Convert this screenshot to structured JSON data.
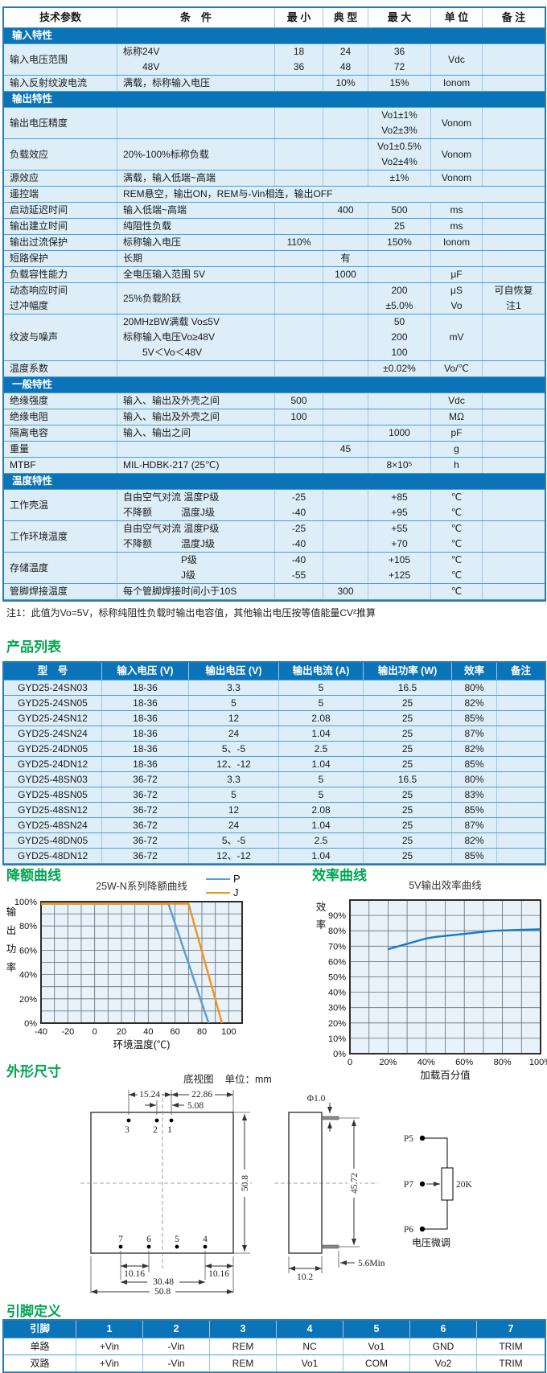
{
  "colors": {
    "header_blue": "#0b73b7",
    "row_light_blue": "#ddeef8",
    "border_blue": "#4e9dd0",
    "heading_green": "#00a551",
    "series_p_blue": "#5b9bd5",
    "series_j_orange": "#f0921e",
    "efficiency_line_blue": "#1879c8"
  },
  "headings": {
    "derating": "降额曲线",
    "efficiency": "效率曲线",
    "outline": "外形尺寸"
  },
  "spec_table": {
    "headers": [
      "技术参数",
      "条　件",
      "最 小",
      "典 型",
      "最 大",
      "单 位",
      "备 注"
    ],
    "rows": [
      {
        "section": "输入特性"
      },
      {
        "lines": 2,
        "param": [
          "输入电压范围"
        ],
        "cond": [
          "标称24V",
          "　　48V"
        ],
        "min": [
          "18",
          "36"
        ],
        "typ": [
          "24",
          "48"
        ],
        "max": [
          "36",
          "72"
        ],
        "unit": [
          "Vdc"
        ],
        "note": []
      },
      {
        "lines": 1,
        "param": [
          "输入反射纹波电流"
        ],
        "cond": [
          "满载，标称输入电压"
        ],
        "min": [],
        "typ": [
          "10%"
        ],
        "max": [
          "15%"
        ],
        "unit": [
          "Ionom"
        ],
        "note": []
      },
      {
        "section": "输出特性"
      },
      {
        "lines": 2,
        "param": [
          "输出电压精度"
        ],
        "cond": [],
        "min": [],
        "typ": [],
        "max": [
          "Vo1±1%",
          "Vo2±3%"
        ],
        "unit": [
          "Vonom"
        ],
        "note": []
      },
      {
        "lines": 2,
        "param": [
          "负载效应"
        ],
        "cond": [
          "20%-100%标称负载"
        ],
        "min": [],
        "typ": [],
        "max": [
          "Vo1±0.5%",
          "Vo2±4%"
        ],
        "unit": [
          "Vonom"
        ],
        "note": []
      },
      {
        "lines": 1,
        "param": [
          "源效应"
        ],
        "cond": [
          "满载，输入低端~高端"
        ],
        "min": [],
        "typ": [],
        "max": [
          "±1%"
        ],
        "unit": [
          "Vonom"
        ],
        "note": []
      },
      {
        "lines": 1,
        "param": [
          "遥控端"
        ],
        "cond_merged": "REM悬空，输出ON，REM与-Vin相连，输出OFF"
      },
      {
        "lines": 1,
        "param": [
          "启动延迟时间"
        ],
        "cond": [
          "输入低端~高端"
        ],
        "min": [],
        "typ": [
          "400"
        ],
        "max": [
          "500"
        ],
        "unit": [
          "ms"
        ],
        "note": []
      },
      {
        "lines": 1,
        "param": [
          "输出建立时间"
        ],
        "cond": [
          "纯阻性负载"
        ],
        "min": [],
        "typ": [],
        "max": [
          "25"
        ],
        "unit": [
          "ms"
        ],
        "note": []
      },
      {
        "lines": 1,
        "param": [
          "输出过流保护"
        ],
        "cond": [
          "标称输入电压"
        ],
        "min": [
          "110%"
        ],
        "typ": [],
        "max": [
          "150%"
        ],
        "unit": [
          "Ionom"
        ],
        "note": []
      },
      {
        "lines": 1,
        "param": [
          "短路保护"
        ],
        "cond": [
          "长期"
        ],
        "min": [],
        "typ": [
          "有"
        ],
        "max": [],
        "unit": [],
        "note": []
      },
      {
        "lines": 1,
        "param": [
          "负载容性能力"
        ],
        "cond": [
          "全电压输入范围 5V"
        ],
        "min": [],
        "typ": [
          "1000"
        ],
        "max": [],
        "unit": [
          "μF"
        ],
        "note": []
      },
      {
        "lines": 2,
        "param": [
          "动态响应时间",
          "过冲幅度"
        ],
        "cond": [
          "25%负载阶跃"
        ],
        "min": [],
        "typ": [],
        "max": [
          "200",
          "±5.0%"
        ],
        "unit": [
          "μS",
          "Vo"
        ],
        "note": [
          "可自恢复",
          "注1"
        ]
      },
      {
        "lines": 3,
        "param": [
          "纹波与噪声"
        ],
        "cond": [
          "20MHzBW满载 Vo≤5V",
          "标称输入电压Vo≥48V",
          "　　5V＜Vo＜48V"
        ],
        "min": [],
        "typ": [],
        "max": [
          "50",
          "200",
          "100"
        ],
        "unit": [
          "mV"
        ],
        "note": []
      },
      {
        "lines": 1,
        "param": [
          "温度系数"
        ],
        "cond": [],
        "min": [],
        "typ": [],
        "max": [
          "±0.02%"
        ],
        "unit": [
          "Vo/℃"
        ],
        "note": []
      },
      {
        "section": "一般特性"
      },
      {
        "lines": 1,
        "param": [
          "绝缘强度"
        ],
        "cond": [
          "输入、输出及外壳之间"
        ],
        "min": [
          "500"
        ],
        "typ": [],
        "max": [],
        "unit": [
          "Vdc"
        ],
        "note": []
      },
      {
        "lines": 1,
        "param": [
          "绝缘电阻"
        ],
        "cond": [
          "输入、输出及外壳之间"
        ],
        "min": [
          "100"
        ],
        "typ": [],
        "max": [],
        "unit": [
          "MΩ"
        ],
        "note": []
      },
      {
        "lines": 1,
        "param": [
          "隔离电容"
        ],
        "cond": [
          "输入、输出之间"
        ],
        "min": [],
        "typ": [],
        "max": [
          "1000"
        ],
        "unit": [
          "pF"
        ],
        "note": []
      },
      {
        "lines": 1,
        "param": [
          "重量"
        ],
        "cond": [],
        "min": [],
        "typ": [
          "45"
        ],
        "max": [],
        "unit": [
          "g"
        ],
        "note": []
      },
      {
        "lines": 1,
        "param": [
          "MTBF"
        ],
        "cond": [
          "MIL-HDBK-217 (25℃)"
        ],
        "min": [],
        "typ": [],
        "max": [
          "8×10⁵"
        ],
        "unit": [
          "h"
        ],
        "note": []
      },
      {
        "section": "温度特性"
      },
      {
        "lines": 2,
        "param": [
          "工作壳温"
        ],
        "cond": [
          "自由空气对流 温度P级",
          "不降额　　　温度J级"
        ],
        "min": [
          "-25",
          "-40"
        ],
        "typ": [],
        "max": [
          "+85",
          "+95"
        ],
        "unit": [
          "℃",
          "℃"
        ],
        "note": []
      },
      {
        "lines": 2,
        "param": [
          "工作环境温度"
        ],
        "cond": [
          "自由空气对流 温度P级",
          "不降额　　　温度J级"
        ],
        "min": [
          "-25",
          "-40"
        ],
        "typ": [],
        "max": [
          "+55",
          "+70"
        ],
        "unit": [
          "℃",
          "℃"
        ],
        "note": []
      },
      {
        "lines": 2,
        "param": [
          "存储温度"
        ],
        "cond": [
          "　　　　　　P级",
          "　　　　　　J级"
        ],
        "min": [
          "-40",
          "-55"
        ],
        "typ": [],
        "max": [
          "+105",
          "+125"
        ],
        "unit": [
          "℃",
          "℃"
        ],
        "note": []
      },
      {
        "lines": 1,
        "param": [
          "管脚焊接温度"
        ],
        "cond": [
          "每个管脚焊接时间小于10S"
        ],
        "min": [],
        "typ": [
          "300"
        ],
        "max": [],
        "unit": [
          "℃"
        ],
        "note": []
      }
    ]
  },
  "note1": "注1：此值为Vo=5V，标称纯阻性负载时输出电容值，其他输出电压按等值能量CV²推算",
  "product_table": {
    "title": "产品列表",
    "headers": [
      "型　号",
      "输入电压 (V)",
      "输出电压 (V)",
      "输出电流 (A)",
      "输出功率 (W)",
      "效率",
      "备注"
    ],
    "rows": [
      [
        "GYD25-24SN03",
        "18-36",
        "3.3",
        "5",
        "16.5",
        "80%",
        ""
      ],
      [
        "GYD25-24SN05",
        "18-36",
        "5",
        "5",
        "25",
        "82%",
        ""
      ],
      [
        "GYD25-24SN12",
        "18-36",
        "12",
        "2.08",
        "25",
        "85%",
        ""
      ],
      [
        "GYD25-24SN24",
        "18-36",
        "24",
        "1.04",
        "25",
        "87%",
        ""
      ],
      [
        "GYD25-24DN05",
        "18-36",
        "5、-5",
        "2.5",
        "25",
        "82%",
        ""
      ],
      [
        "GYD25-24DN12",
        "18-36",
        "12、-12",
        "1.04",
        "25",
        "85%",
        ""
      ],
      [
        "GYD25-48SN03",
        "36-72",
        "3.3",
        "5",
        "16.5",
        "80%",
        ""
      ],
      [
        "GYD25-48SN05",
        "36-72",
        "5",
        "5",
        "25",
        "83%",
        ""
      ],
      [
        "GYD25-48SN12",
        "36-72",
        "12",
        "2.08",
        "25",
        "85%",
        ""
      ],
      [
        "GYD25-48SN24",
        "36-72",
        "24",
        "1.04",
        "25",
        "87%",
        ""
      ],
      [
        "GYD25-48DN05",
        "36-72",
        "5、-5",
        "2.5",
        "25",
        "82%",
        ""
      ],
      [
        "GYD25-48DN12",
        "36-72",
        "12、-12",
        "1.04",
        "25",
        "85%",
        ""
      ]
    ]
  },
  "chart_data": [
    {
      "type": "line",
      "title": "25W-N系列降额曲线",
      "xlabel": "环境温度(℃)",
      "ylabel": "输出功率",
      "xlim": [
        -40,
        110
      ],
      "ylim": [
        0,
        100
      ],
      "grid": true,
      "grid_step_x": 10,
      "grid_step_y": 10,
      "legend_position": "top-right",
      "xticks": [
        -40,
        -20,
        0,
        20,
        40,
        60,
        80,
        100
      ],
      "xtick_labels": [
        "-40",
        "-20",
        "0",
        "20",
        "40",
        "60",
        "80",
        "100"
      ],
      "yticks": [
        100,
        80,
        60,
        40,
        20,
        0
      ],
      "ytick_labels": [
        "100%",
        "80%",
        "60%",
        "40%",
        "20%",
        "0%"
      ],
      "series": [
        {
          "name": "P",
          "color": "#5b9bd5",
          "points": [
            [
              -40,
              100
            ],
            [
              55,
              100
            ],
            [
              85,
              0
            ]
          ]
        },
        {
          "name": "J",
          "color": "#f0921e",
          "points": [
            [
              -40,
              100
            ],
            [
              70,
              100
            ],
            [
              95,
              0
            ]
          ]
        }
      ]
    },
    {
      "type": "line",
      "title": "5V输出效率曲线",
      "xlabel": "加载百分值",
      "ylabel": "效率",
      "xlim": [
        0,
        100
      ],
      "ylim": [
        0,
        100
      ],
      "grid": true,
      "grid_step_x": 10,
      "grid_step_y": 10,
      "legend_position": "none",
      "xticks": [
        0,
        20,
        40,
        60,
        80,
        100
      ],
      "xtick_labels": [
        "0",
        "20%",
        "40%",
        "60%",
        "80%",
        "100%"
      ],
      "yticks": [
        90,
        80,
        70,
        60,
        50,
        40,
        30,
        20,
        10,
        0
      ],
      "ytick_labels": [
        "90%",
        "80%",
        "70%",
        "60%",
        "50%",
        "40%",
        "30%",
        "20%",
        "10%",
        "0%"
      ],
      "series": [
        {
          "name": "效率",
          "color": "#1879c8",
          "points": [
            [
              20,
              68
            ],
            [
              40,
              75
            ],
            [
              45,
              76
            ],
            [
              60,
              78
            ],
            [
              75,
              80
            ],
            [
              100,
              81
            ]
          ]
        }
      ]
    }
  ],
  "drawing": {
    "caption": "底视图",
    "unit_label": "单位：mm",
    "dims": {
      "d1524": "15.24",
      "d2286": "22.86",
      "d508": "5.08",
      "d508v": "50.8",
      "d1016l": "10.16",
      "d1016r": "10.16",
      "d3048": "30.48",
      "d5080": "50.8",
      "dphi": "Φ1.0",
      "d4572": "45.72",
      "d102": "10.2",
      "d56": "5.6Min"
    },
    "top_pins": [
      "3",
      "2",
      "1"
    ],
    "bottom_pins": [
      "7",
      "6",
      "5",
      "4"
    ],
    "trim": {
      "p5": "P5",
      "p7": "P7",
      "p6": "P6",
      "res": "20K",
      "label": "电压微调"
    }
  },
  "pin_table": {
    "title": "引脚定义",
    "headers": [
      "引脚",
      "1",
      "2",
      "3",
      "4",
      "5",
      "6",
      "7"
    ],
    "rows": [
      {
        "label": "单路",
        "cells": [
          "+Vin",
          "-Vin",
          "REM",
          "NC",
          "Vo1",
          "GND",
          "TRIM"
        ]
      },
      {
        "label": "双路",
        "cells": [
          "+Vin",
          "-Vin",
          "REM",
          "Vo1",
          "COM",
          "Vo2",
          "TRIM"
        ]
      }
    ]
  }
}
